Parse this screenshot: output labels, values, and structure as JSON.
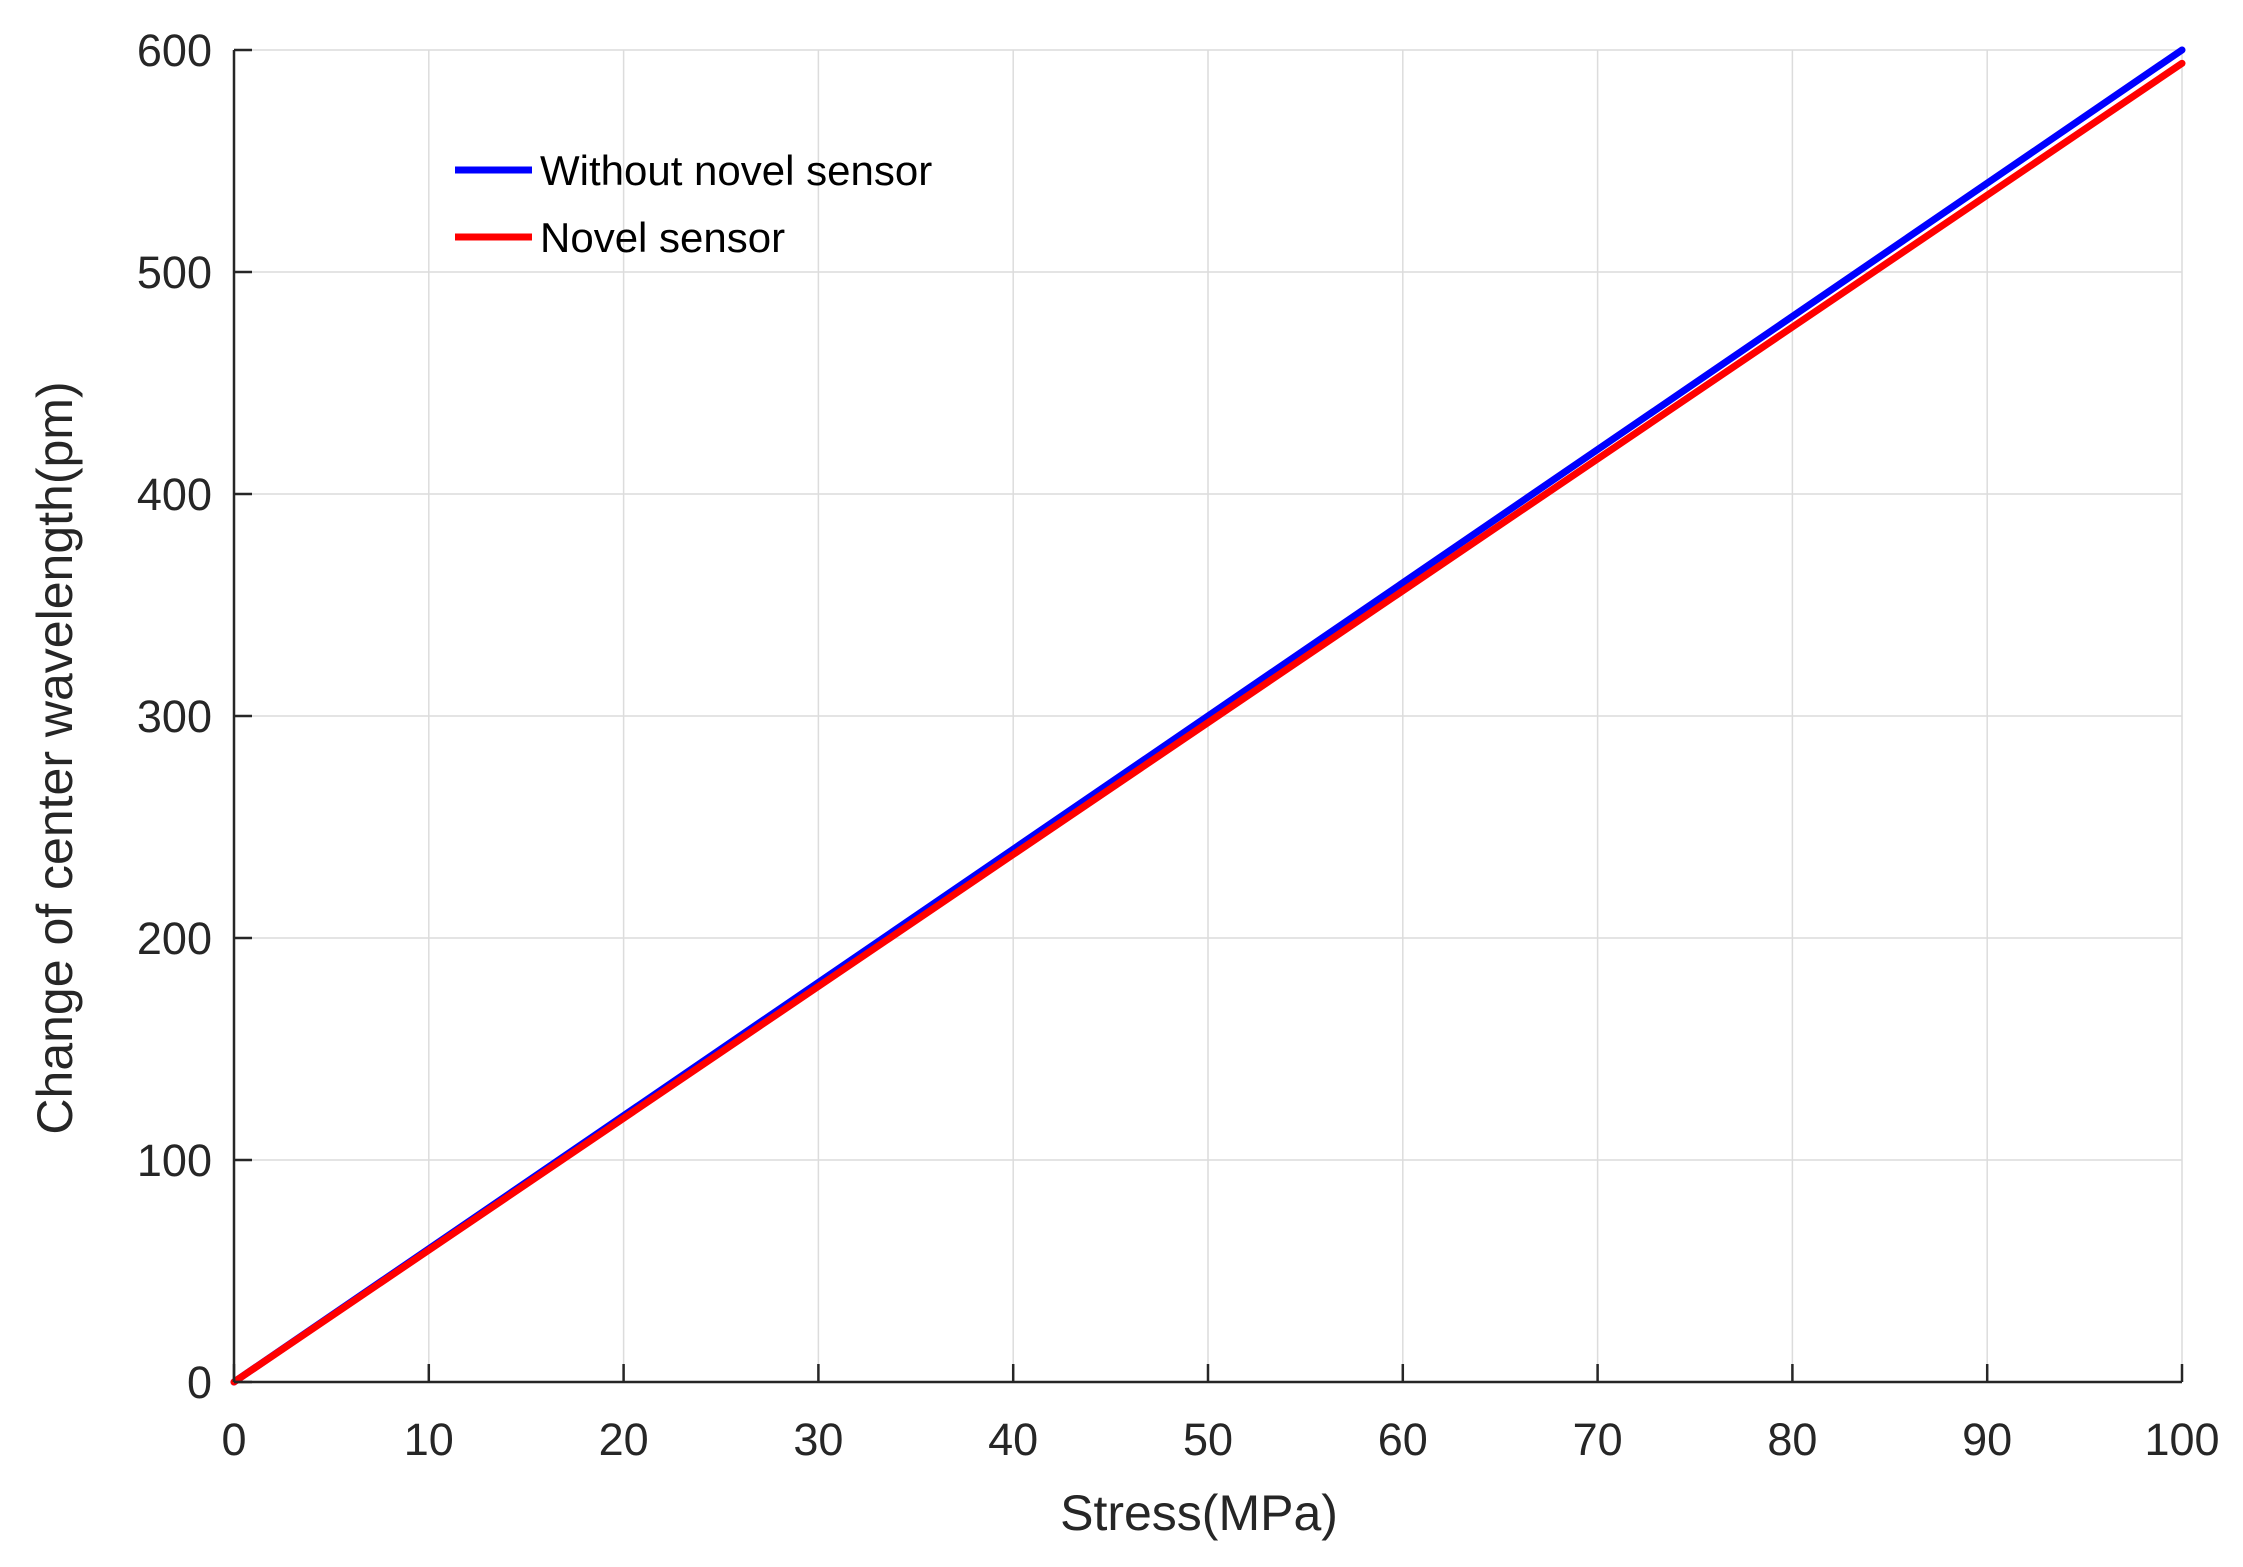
{
  "chart_data": {
    "type": "line",
    "title": "",
    "xlabel": "Stress(MPa)",
    "ylabel": "Change of center wavelength(pm)",
    "xlim": [
      0,
      100
    ],
    "ylim": [
      0,
      600
    ],
    "xticks": [
      0,
      10,
      20,
      30,
      40,
      50,
      60,
      70,
      80,
      90,
      100
    ],
    "yticks": [
      0,
      100,
      200,
      300,
      400,
      500,
      600
    ],
    "grid": true,
    "legend_position": "top-left",
    "series": [
      {
        "name": "Without novel sensor",
        "color": "#0000ff",
        "x": [
          0,
          100
        ],
        "y": [
          0,
          600
        ]
      },
      {
        "name": "Novel sensor",
        "color": "#ff0000",
        "x": [
          0,
          100
        ],
        "y": [
          0,
          594
        ]
      }
    ]
  }
}
